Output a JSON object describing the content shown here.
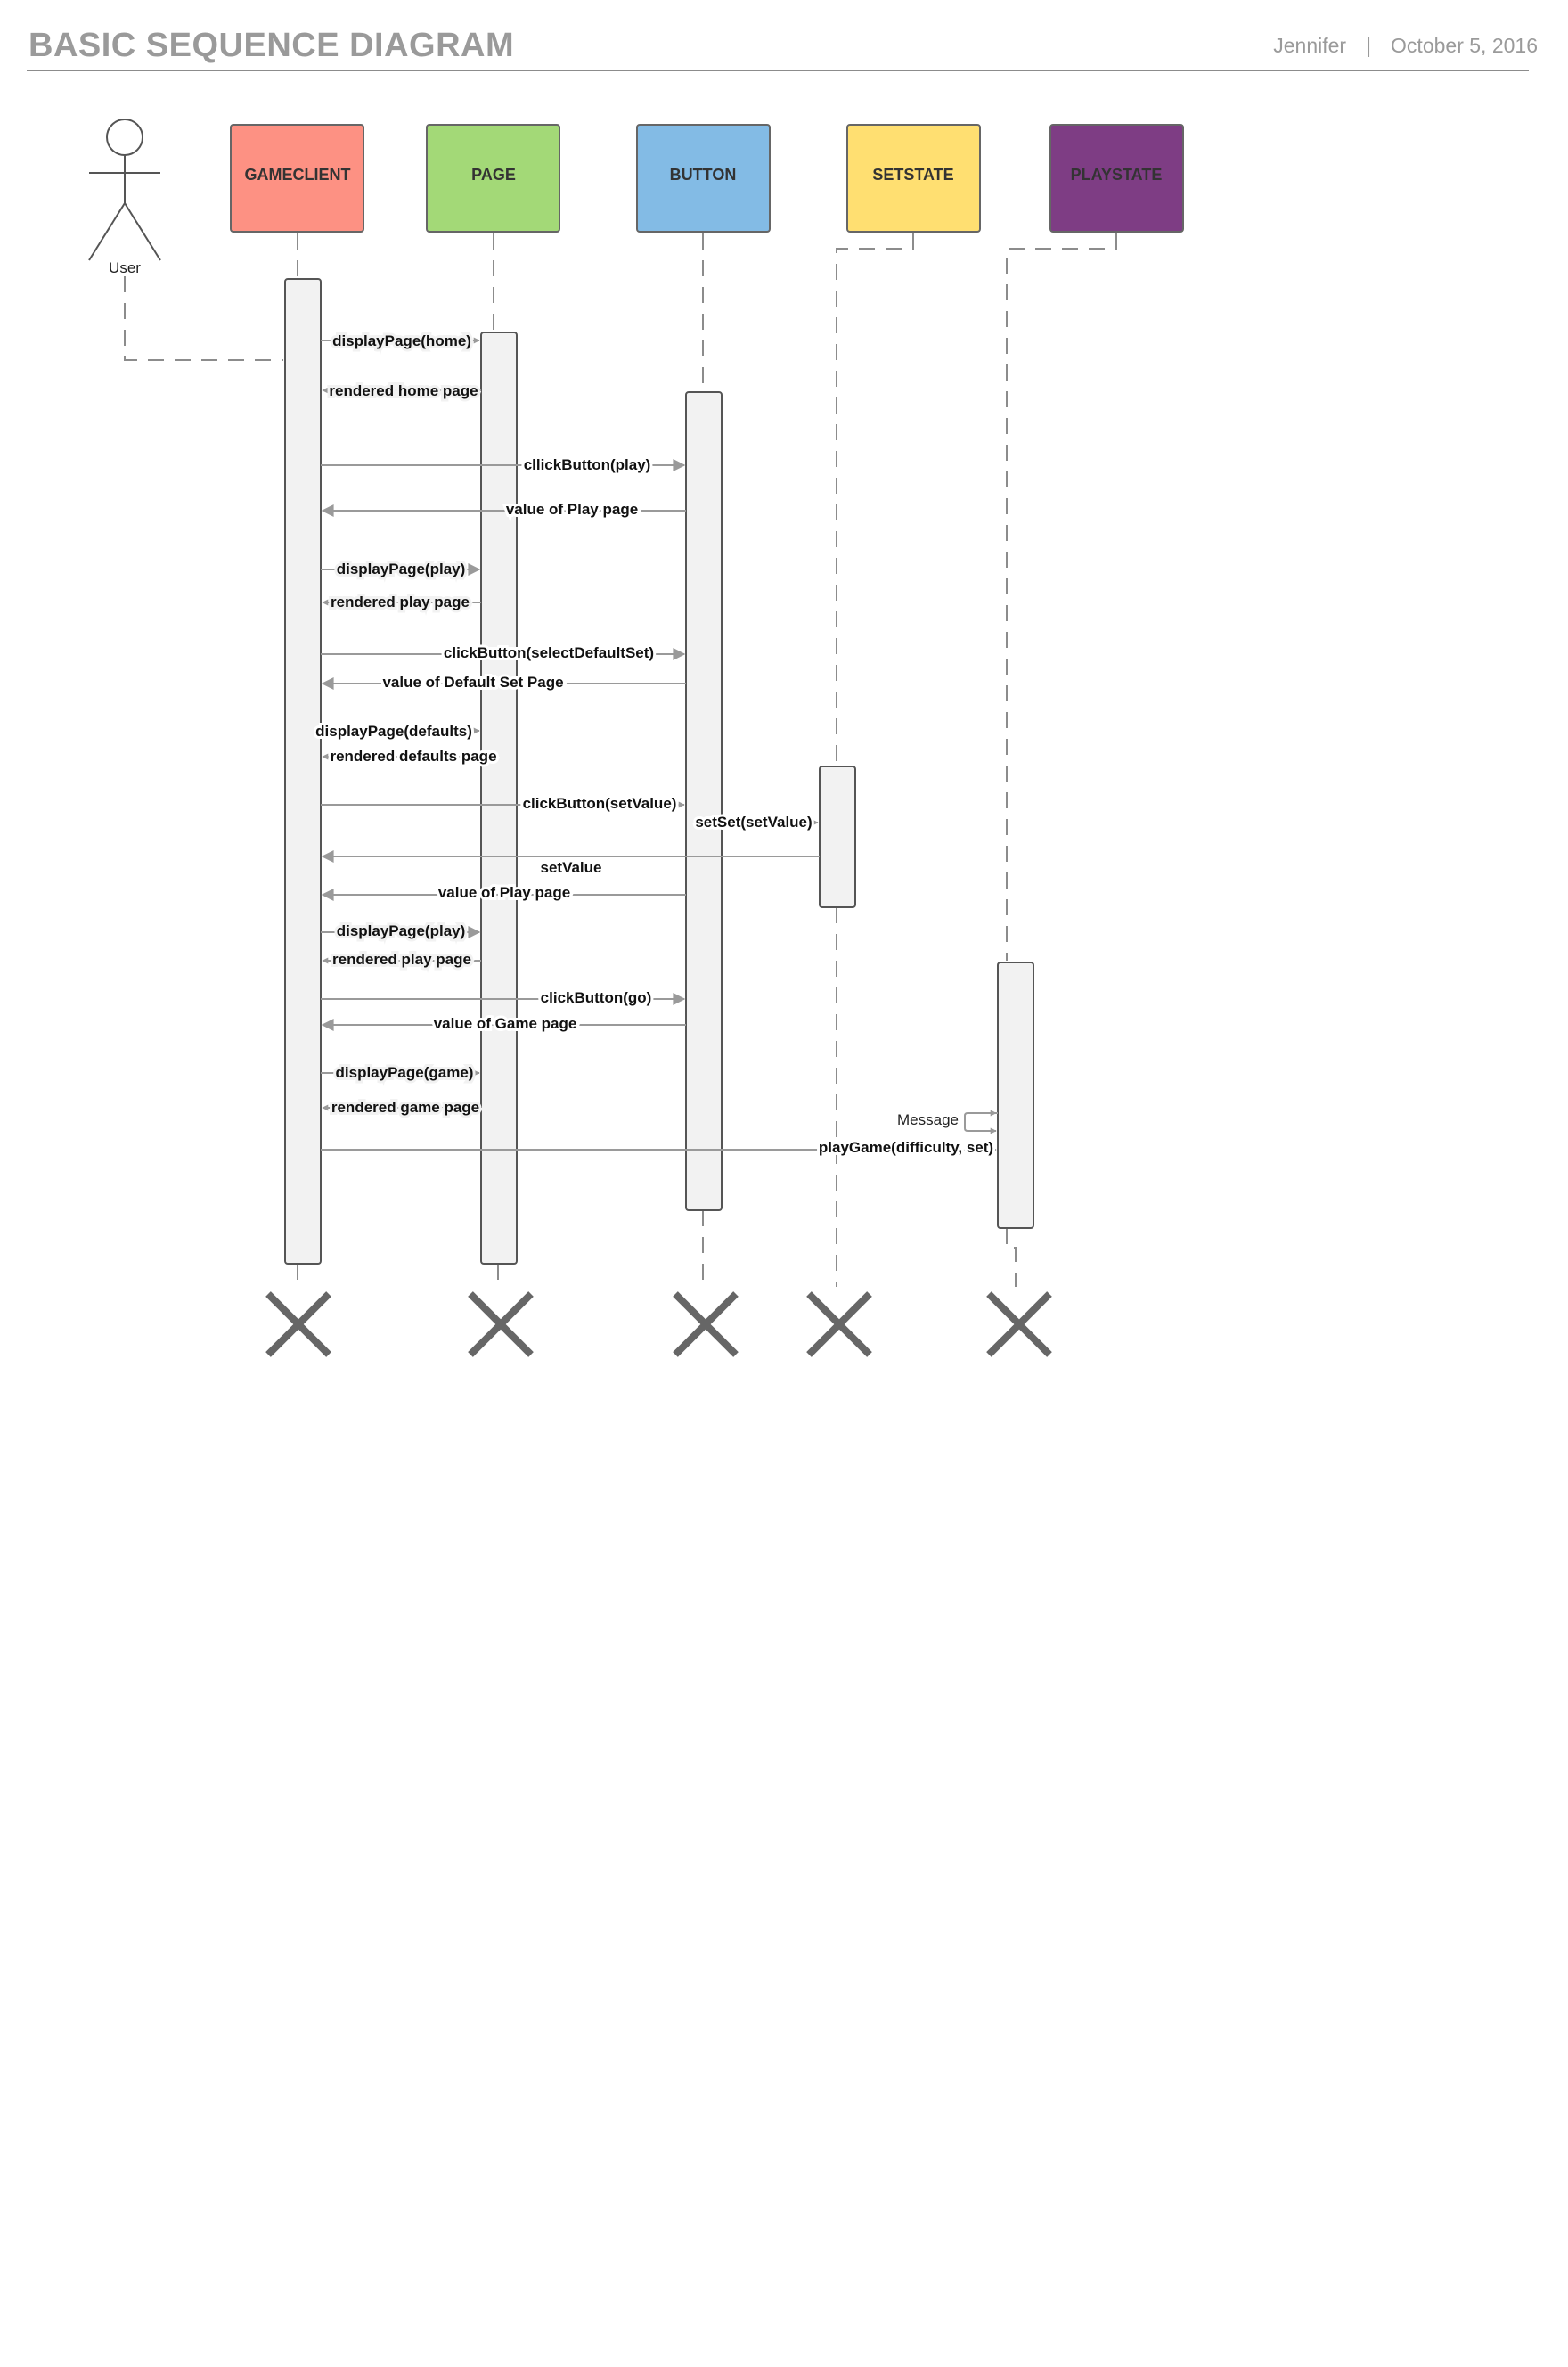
{
  "header": {
    "title": "BASIC SEQUENCE DIAGRAM",
    "author": "Jennifer",
    "separator": "|",
    "date": "October 5, 2016"
  },
  "actor": {
    "label": "User"
  },
  "participants": [
    {
      "id": "gameclient",
      "label": "GAMECLIENT",
      "color": "#fd9183"
    },
    {
      "id": "page",
      "label": "PAGE",
      "color": "#a3d977"
    },
    {
      "id": "button",
      "label": "BUTTON",
      "color": "#83bbe5"
    },
    {
      "id": "setstate",
      "label": "SETSTATE",
      "color": "#ffdf71"
    },
    {
      "id": "playstate",
      "label": "PLAYSTATE",
      "color": "#7e3d84"
    }
  ],
  "messages": [
    {
      "id": "m1",
      "label": "displayPage(home)"
    },
    {
      "id": "m2",
      "label": "rendered home page"
    },
    {
      "id": "m3",
      "label": "cllickButton(play)"
    },
    {
      "id": "m4",
      "label": "value of Play page"
    },
    {
      "id": "m5",
      "label": "displayPage(play)"
    },
    {
      "id": "m6",
      "label": "rendered play page"
    },
    {
      "id": "m7",
      "label": "clickButton(selectDefaultSet)"
    },
    {
      "id": "m8",
      "label": "value of Default Set Page"
    },
    {
      "id": "m9",
      "label": "displayPage(defaults)"
    },
    {
      "id": "m10",
      "label": "rendered defaults page"
    },
    {
      "id": "m11",
      "label": "clickButton(setValue)"
    },
    {
      "id": "m12",
      "label": "setSet(setValue)"
    },
    {
      "id": "m13",
      "label": "setValue"
    },
    {
      "id": "m14",
      "label": "value of Play page"
    },
    {
      "id": "m15",
      "label": "displayPage(play)"
    },
    {
      "id": "m16",
      "label": "rendered play page"
    },
    {
      "id": "m17",
      "label": "clickButton(go)"
    },
    {
      "id": "m18",
      "label": "value of Game page"
    },
    {
      "id": "m19",
      "label": "displayPage(game)"
    },
    {
      "id": "m20",
      "label": "rendered game page"
    },
    {
      "id": "m21",
      "label": "Message"
    },
    {
      "id": "m22",
      "label": "playGame(difficulty, set)"
    }
  ]
}
